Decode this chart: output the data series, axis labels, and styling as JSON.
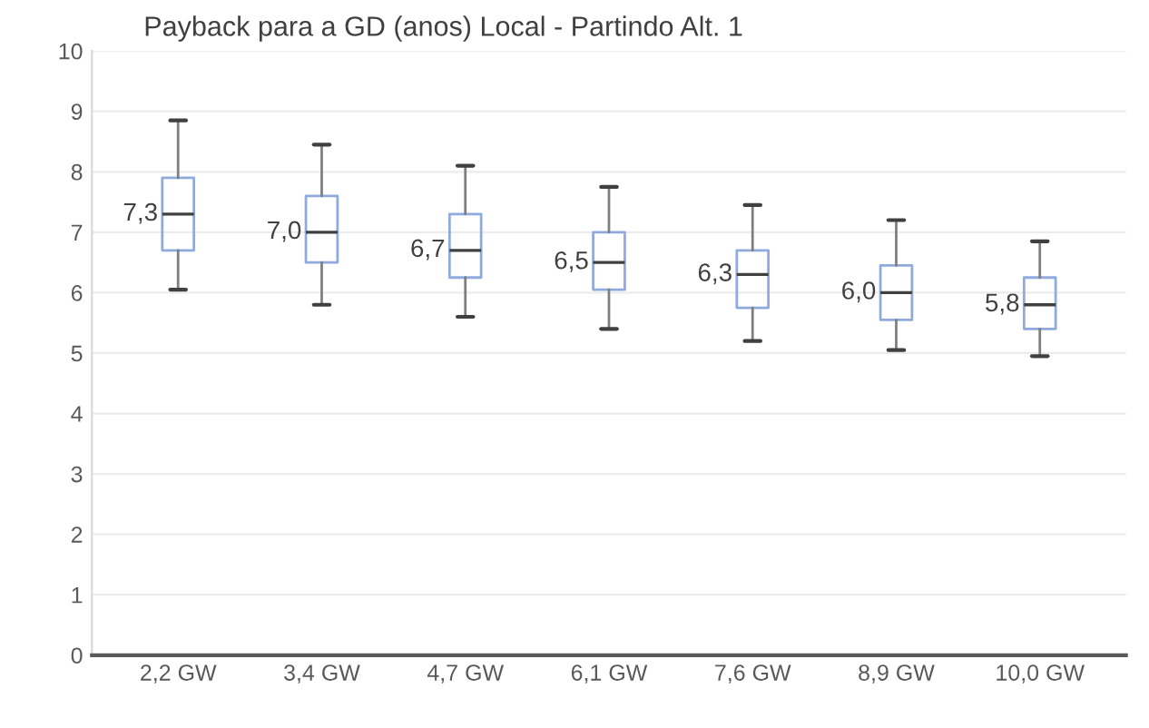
{
  "chart_data": {
    "type": "box",
    "title": "Payback para a GD (anos) Local - Partindo Alt. 1",
    "categories": [
      "2,2 GW",
      "3,4 GW",
      "4,7 GW",
      "6,1 GW",
      "7,6 GW",
      "8,9 GW",
      "10,0 GW"
    ],
    "boxes": [
      {
        "low": 6.05,
        "q1": 6.7,
        "median": 7.3,
        "q3": 7.9,
        "high": 8.85
      },
      {
        "low": 5.8,
        "q1": 6.5,
        "median": 7.0,
        "q3": 7.6,
        "high": 8.45
      },
      {
        "low": 5.6,
        "q1": 6.25,
        "median": 6.7,
        "q3": 7.3,
        "high": 8.1
      },
      {
        "low": 5.4,
        "q1": 6.05,
        "median": 6.5,
        "q3": 7.0,
        "high": 7.75
      },
      {
        "low": 5.2,
        "q1": 5.75,
        "median": 6.3,
        "q3": 6.7,
        "high": 7.45
      },
      {
        "low": 5.05,
        "q1": 5.55,
        "median": 6.0,
        "q3": 6.45,
        "high": 7.2
      },
      {
        "low": 4.95,
        "q1": 5.4,
        "median": 5.8,
        "q3": 6.25,
        "high": 6.85
      }
    ],
    "value_labels": [
      "7,3",
      "7,0",
      "6,7",
      "6,5",
      "6,3",
      "6,0",
      "5,8"
    ],
    "color": "#8faadc",
    "ylim": [
      0,
      10
    ],
    "yticks": [
      0,
      1,
      2,
      3,
      4,
      5,
      6,
      7,
      8,
      9,
      10
    ],
    "grid": "y",
    "legend": false
  }
}
